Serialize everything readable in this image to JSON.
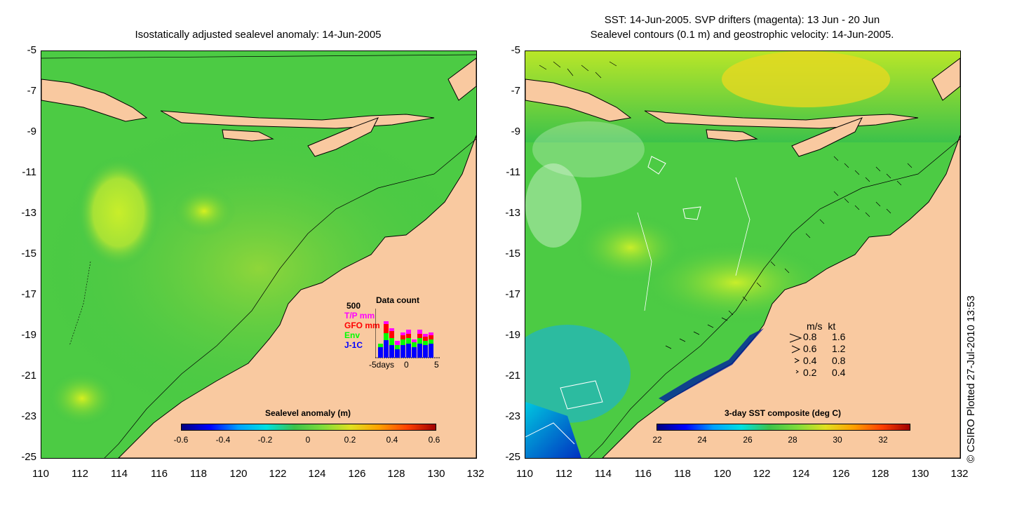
{
  "left_panel": {
    "title": "Isostatically adjusted sealevel anomaly: 14-Jun-2005",
    "y_ticks": [
      "-5",
      "-7",
      "-9",
      "-11",
      "-13",
      "-15",
      "-17",
      "-19",
      "-21",
      "-23",
      "-25"
    ],
    "x_ticks": [
      "110",
      "112",
      "114",
      "116",
      "118",
      "120",
      "122",
      "124",
      "126",
      "128",
      "130",
      "132"
    ],
    "colorbar": {
      "title": "Sealevel anomaly (m)",
      "ticks": [
        "-0.6",
        "-0.4",
        "-0.2",
        "0",
        "0.2",
        "0.4",
        "0.6"
      ]
    },
    "data_count": {
      "title": "Data count",
      "y_max": "500",
      "series": [
        {
          "name": "T/P mm",
          "color": "#ff00ff"
        },
        {
          "name": "GFO mm",
          "color": "#ff0000"
        },
        {
          "name": "Env",
          "color": "#00ff00"
        },
        {
          "name": "J-1C",
          "color": "#0000ff"
        }
      ],
      "x_labels": [
        "-5days",
        "0",
        "5"
      ]
    }
  },
  "right_panel": {
    "title_line1": "SST: 14-Jun-2005. SVP drifters (magenta): 13 Jun - 20 Jun",
    "title_line2": "Sealevel contours (0.1 m) and geostrophic velocity: 14-Jun-2005.",
    "y_ticks": [
      "-5",
      "-7",
      "-9",
      "-11",
      "-13",
      "-15",
      "-17",
      "-19",
      "-21",
      "-23",
      "-25"
    ],
    "x_ticks": [
      "110",
      "112",
      "114",
      "116",
      "118",
      "120",
      "122",
      "124",
      "126",
      "128",
      "130",
      "132"
    ],
    "colorbar": {
      "title": "3-day SST composite (deg C)",
      "ticks": [
        "22",
        "24",
        "26",
        "28",
        "30",
        "32"
      ]
    },
    "velocity_legend": {
      "header": "m/s  kt",
      "rows": [
        {
          "ms": "0.8",
          "kt": "1.6"
        },
        {
          "ms": "0.6",
          "kt": "1.2"
        },
        {
          "ms": "0.4",
          "kt": "0.8"
        },
        {
          "ms": "0.2",
          "kt": "0.4"
        }
      ]
    }
  },
  "credit": "© CSIRO Plotted 27-Jul-2010 13:53",
  "colors": {
    "land": "#f9c9a0",
    "sea_green": "#3cc24a",
    "sea_light": "#7fdc3a"
  }
}
